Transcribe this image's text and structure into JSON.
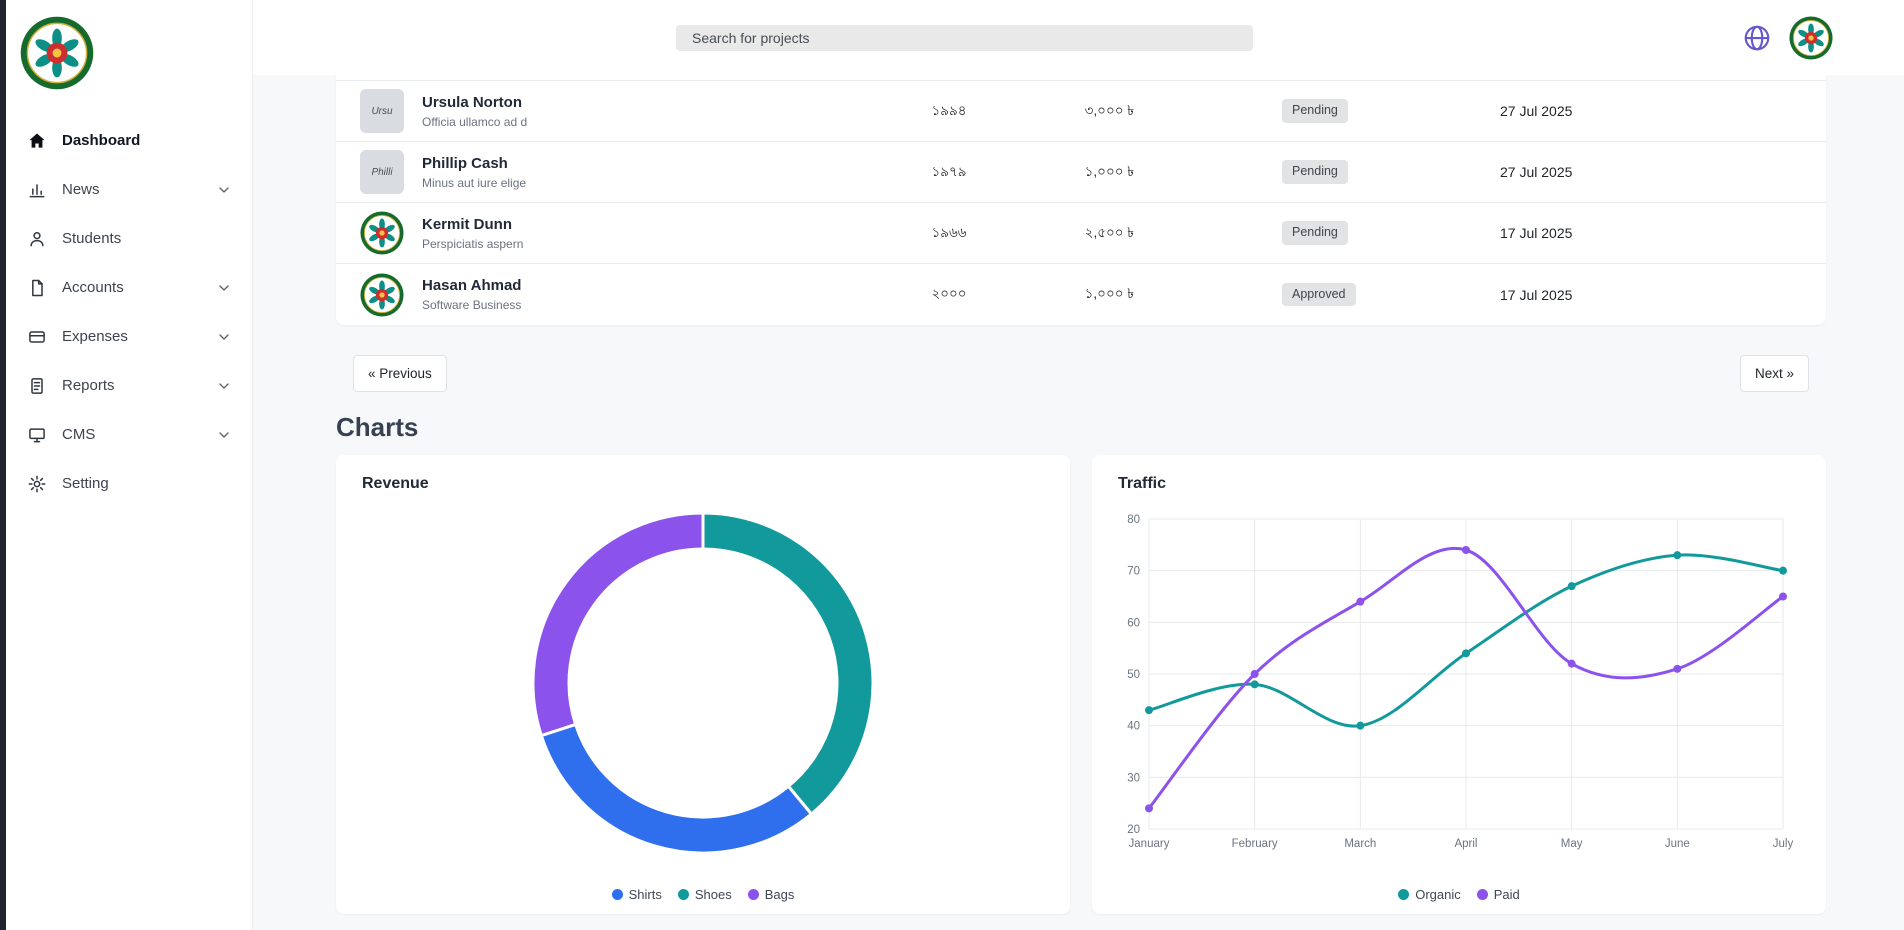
{
  "topbar": {
    "search_placeholder": "Search for projects"
  },
  "sidebar": {
    "items": [
      {
        "label": "Dashboard",
        "icon": "home",
        "active": true,
        "expandable": false
      },
      {
        "label": "News",
        "icon": "news",
        "active": false,
        "expandable": true
      },
      {
        "label": "Students",
        "icon": "students",
        "active": false,
        "expandable": false
      },
      {
        "label": "Accounts",
        "icon": "accounts",
        "active": false,
        "expandable": true
      },
      {
        "label": "Expenses",
        "icon": "expenses",
        "active": false,
        "expandable": true
      },
      {
        "label": "Reports",
        "icon": "reports",
        "active": false,
        "expandable": true
      },
      {
        "label": "CMS",
        "icon": "cms",
        "active": false,
        "expandable": true
      },
      {
        "label": "Setting",
        "icon": "setting",
        "active": false,
        "expandable": false
      }
    ]
  },
  "table": {
    "rows": [
      {
        "name": "Ursula Norton",
        "subtitle": "Officia ullamco ad d",
        "avatar": "photo",
        "avatar_text": "Ursu",
        "year": "১৯৯৪",
        "amount": "৩,০০০ ৳",
        "status": "Pending",
        "date": "27 Jul 2025"
      },
      {
        "name": "Phillip Cash",
        "subtitle": "Minus aut iure elige",
        "avatar": "photo",
        "avatar_text": "Philli",
        "year": "১৯৭৯",
        "amount": "১,০০০ ৳",
        "status": "Pending",
        "date": "27 Jul 2025"
      },
      {
        "name": "Kermit Dunn",
        "subtitle": "Perspiciatis aspern",
        "avatar": "logo",
        "avatar_text": "",
        "year": "১৯৬৬",
        "amount": "২,৫০০ ৳",
        "status": "Pending",
        "date": "17 Jul 2025"
      },
      {
        "name": "Hasan Ahmad",
        "subtitle": "Software Business",
        "avatar": "logo",
        "avatar_text": "",
        "year": "২০০০",
        "amount": "১,০০০ ৳",
        "status": "Approved",
        "date": "17 Jul 2025"
      }
    ]
  },
  "pagination": {
    "previous_label": "« Previous",
    "next_label": "Next »"
  },
  "section": {
    "charts_heading": "Charts"
  },
  "chart_data": [
    {
      "type": "donut",
      "title": "Revenue",
      "slices": [
        {
          "label": "Shoes",
          "value": 39,
          "color": "#12999b"
        },
        {
          "label": "Shirts",
          "value": 31,
          "color": "#2f6fed"
        },
        {
          "label": "Bags",
          "value": 30,
          "color": "#8b52ec"
        }
      ],
      "legend_order": [
        "Shirts",
        "Shoes",
        "Bags"
      ],
      "legend_position": "bottom"
    },
    {
      "type": "line",
      "title": "Traffic",
      "x": [
        "January",
        "February",
        "March",
        "April",
        "May",
        "June",
        "July"
      ],
      "series": [
        {
          "name": "Organic",
          "color": "#12999b",
          "values": [
            43,
            48,
            40,
            54,
            67,
            73,
            70
          ]
        },
        {
          "name": "Paid",
          "color": "#8b52ec",
          "values": [
            24,
            50,
            64,
            74,
            52,
            51,
            65
          ]
        }
      ],
      "ylim": [
        20,
        80
      ],
      "yticks": [
        20,
        30,
        40,
        50,
        60,
        70,
        80
      ],
      "grid": true,
      "legend_position": "bottom"
    }
  ]
}
